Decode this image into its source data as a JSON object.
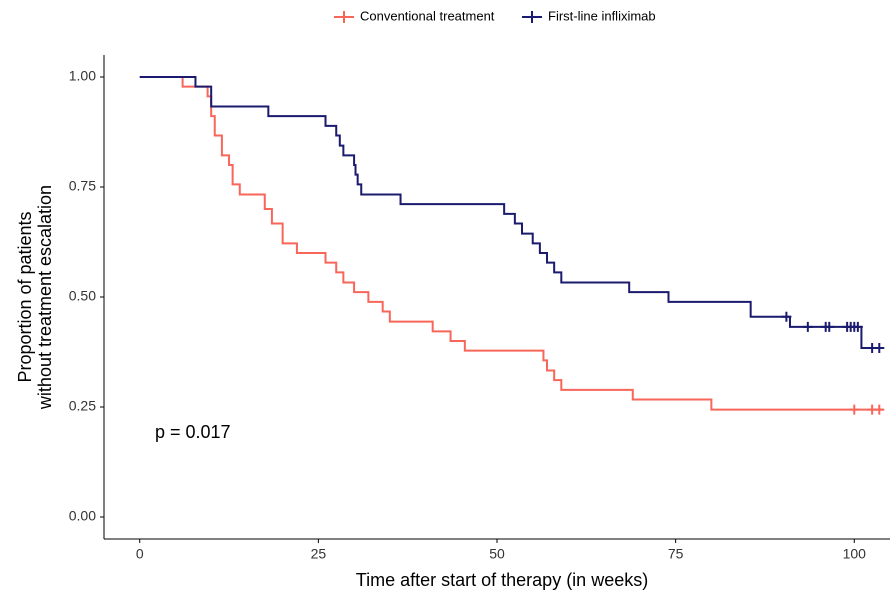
{
  "chart_data": {
    "type": "step",
    "xlabel": "Time after start of therapy (in weeks)",
    "ylabel": [
      "Proportion of patients",
      "without treatment escalation"
    ],
    "annotation": "p = 0.017",
    "legend": "top",
    "xlim": [
      -5,
      105
    ],
    "xticks": [
      0,
      25,
      50,
      75,
      100
    ],
    "ylim": [
      -0.05,
      1.05
    ],
    "yticks": [
      {
        "value": 0,
        "label": "0.00"
      },
      {
        "value": 0.25,
        "label": "0.25"
      },
      {
        "value": 0.5,
        "label": "0.50"
      },
      {
        "value": 0.75,
        "label": "0.75"
      },
      {
        "value": 1,
        "label": "1.00"
      }
    ],
    "series": [
      {
        "name": "Conventional treatment",
        "color": "#f8665a",
        "x": [
          0,
          6,
          9.5,
          10,
          10.5,
          11.5,
          12.5,
          13,
          14,
          17.5,
          18.5,
          20,
          22,
          26,
          27.5,
          28.5,
          30,
          32,
          34,
          35,
          41,
          43.5,
          45.5,
          56.5,
          57,
          58,
          59,
          69,
          80,
          104
        ],
        "values": [
          1,
          0.978,
          0.956,
          0.911,
          0.867,
          0.822,
          0.8,
          0.756,
          0.733,
          0.7,
          0.667,
          0.622,
          0.6,
          0.578,
          0.556,
          0.533,
          0.511,
          0.489,
          0.467,
          0.444,
          0.422,
          0.4,
          0.378,
          0.356,
          0.333,
          0.311,
          0.289,
          0.267,
          0.244,
          0.244
        ],
        "censor_x": [
          100,
          102.5,
          103.5
        ],
        "censor_values": [
          0.244,
          0.244,
          0.244
        ]
      },
      {
        "name": "First-line infliximab",
        "color": "#1a1a6e",
        "x": [
          0,
          7.8,
          10,
          18,
          26,
          27.5,
          28,
          28.5,
          30,
          30.2,
          30.5,
          31,
          36.5,
          51,
          52.5,
          53.5,
          55,
          56,
          57,
          58,
          59,
          68.5,
          74,
          85.5,
          91,
          101,
          104
        ],
        "values": [
          1,
          0.978,
          0.933,
          0.911,
          0.889,
          0.867,
          0.844,
          0.822,
          0.8,
          0.778,
          0.756,
          0.733,
          0.711,
          0.689,
          0.667,
          0.644,
          0.622,
          0.6,
          0.578,
          0.556,
          0.533,
          0.511,
          0.489,
          0.455,
          0.432,
          0.384,
          0.384
        ],
        "censor_x": [
          90.5,
          93.5,
          96,
          96.5,
          99,
          99.5,
          100,
          100.5,
          102.5,
          103.5
        ],
        "censor_values": [
          0.455,
          0.432,
          0.432,
          0.432,
          0.432,
          0.432,
          0.432,
          0.432,
          0.384,
          0.384
        ]
      }
    ]
  }
}
